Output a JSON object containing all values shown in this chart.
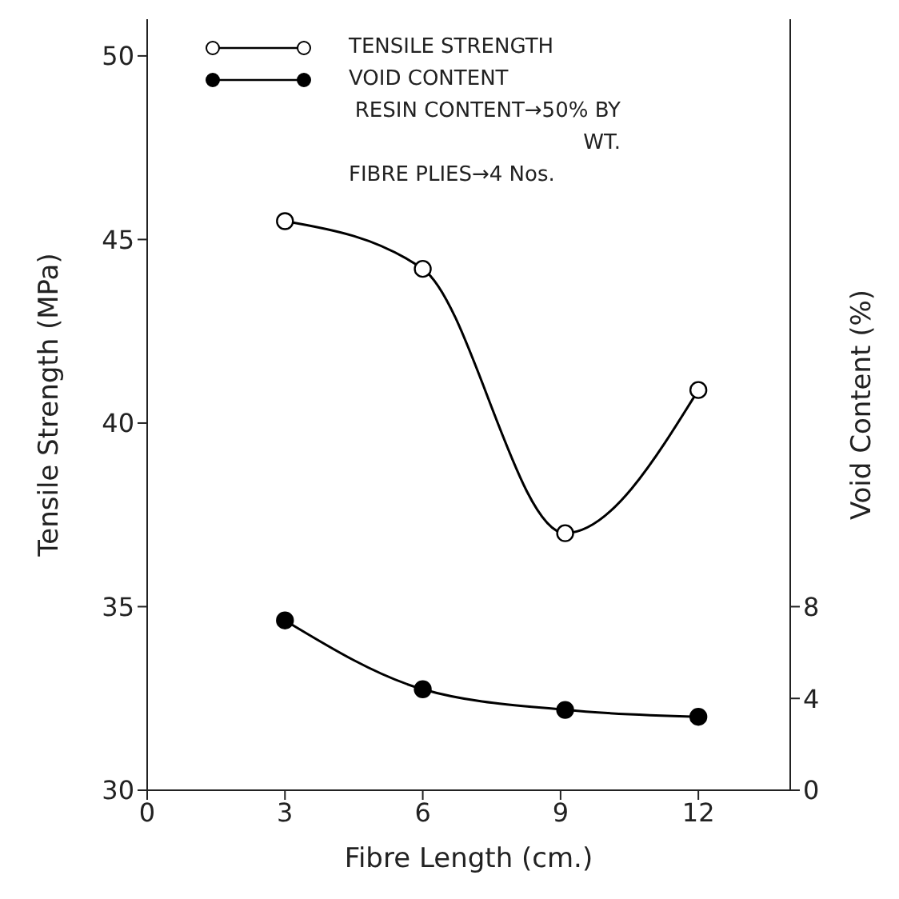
{
  "chart_data": {
    "type": "line",
    "xlabel": "Fibre Length (cm.)",
    "ylabel": "Tensile Strength (MPa)",
    "y2label": "Void Content (%)",
    "x": [
      3,
      6,
      9.1,
      12
    ],
    "series": [
      {
        "name": "TENSILE STRENGTH",
        "color": "#000000",
        "values": [
          45.5,
          44.2,
          37.0,
          40.9
        ]
      },
      {
        "name": "VOID CONTENT",
        "color": "#000000",
        "values": [
          7.4,
          4.4,
          3.5,
          3.2
        ],
        "axis": "y2"
      }
    ],
    "xlim": [
      0,
      14
    ],
    "xticks": [
      0,
      3,
      6,
      9,
      12
    ],
    "ylim": [
      30,
      51
    ],
    "yticks": [
      30,
      35,
      40,
      45,
      50
    ],
    "y2lim": [
      0,
      33.6
    ],
    "y2ticks": [
      0,
      4,
      8
    ],
    "annotations": [
      "RESIN CONTENT→50% BY WT.",
      "FIBRE PLIES→4 Nos."
    ],
    "legend": "top",
    "marker": "circle",
    "grid": false,
    "line_style": "solid"
  }
}
